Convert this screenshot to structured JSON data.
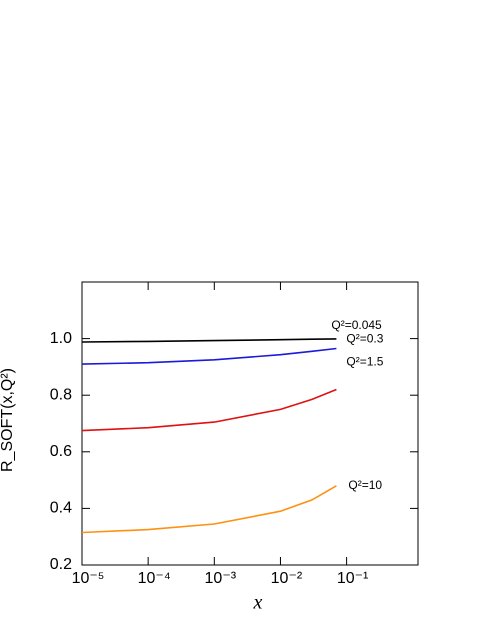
{
  "chart_data": {
    "type": "line",
    "y_label": "R_SOFT(x,Q²)",
    "x_label": "x",
    "log_x": true,
    "x": [
      1e-05,
      0.0001,
      0.001,
      0.01,
      0.03,
      0.07
    ],
    "series": [
      {
        "name": "Q²=0.045",
        "color": "#000000",
        "values": [
          0.988,
          0.99,
          0.993,
          0.996,
          0.998,
          0.999
        ]
      },
      {
        "name": "Q²=0.3",
        "color": "#1a1adc",
        "values": [
          0.91,
          0.915,
          0.925,
          0.943,
          0.955,
          0.965
        ]
      },
      {
        "name": "Q²=1.5",
        "color": "#e01010",
        "values": [
          0.675,
          0.685,
          0.705,
          0.75,
          0.785,
          0.82
        ]
      },
      {
        "name": "Q²=10",
        "color": "#ff9010",
        "values": [
          0.315,
          0.325,
          0.345,
          0.39,
          0.43,
          0.48
        ]
      }
    ],
    "xlim": [
      1e-05,
      1.2
    ],
    "xticks": [
      {
        "value": 1e-05,
        "label": "10⁻⁵"
      },
      {
        "value": 0.0001,
        "label": "10⁻⁴"
      },
      {
        "value": 0.001,
        "label": "10⁻³"
      },
      {
        "value": 0.01,
        "label": "10⁻²"
      },
      {
        "value": 0.1,
        "label": "10⁻¹"
      }
    ],
    "ylim": [
      0.2,
      1.2
    ],
    "yticks": [
      0.2,
      0.4,
      0.6,
      0.8,
      {
        "value": 1,
        "label": "1.0"
      }
    ]
  }
}
